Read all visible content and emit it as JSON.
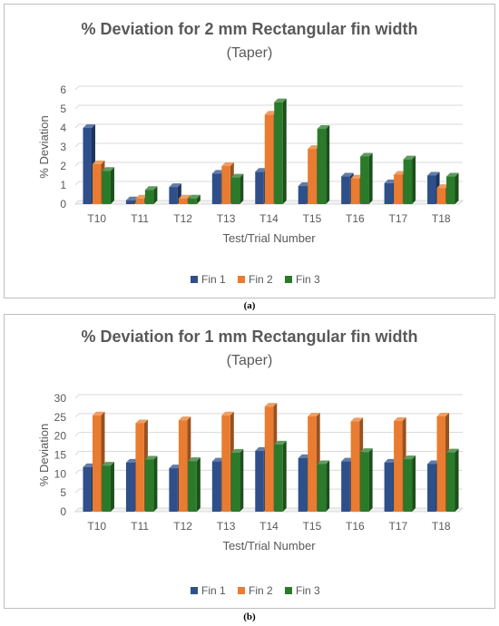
{
  "charts": [
    {
      "caption": "(a)",
      "title": "% Deviation for 2 mm Rectangular fin width",
      "subtitle": "(Taper)",
      "xlabel": "Test/Trial Number",
      "ylabel": "% Deviation"
    },
    {
      "caption": "(b)",
      "title": "% Deviation for 1 mm Rectangular fin width",
      "subtitle": "(Taper)",
      "xlabel": "Test/Trial Number",
      "ylabel": "% Deviation"
    }
  ],
  "colors": {
    "Fin 1": "#2e4f8a",
    "Fin 2": "#e97c30",
    "Fin 3": "#2a7a2a"
  },
  "chart_data": [
    {
      "type": "bar",
      "title": "% Deviation for 2 mm Rectangular fin width",
      "subtitle": "(Taper)",
      "xlabel": "Test/Trial Number",
      "ylabel": "% Deviation",
      "categories": [
        "T10",
        "T11",
        "T12",
        "T13",
        "T14",
        "T15",
        "T16",
        "T17",
        "T18"
      ],
      "ylim": [
        0,
        6
      ],
      "yticks": [
        0,
        1,
        2,
        3,
        4,
        5,
        6
      ],
      "grid": true,
      "legend": "bottom",
      "series": [
        {
          "name": "Fin 1",
          "values": [
            4.0,
            0.2,
            0.9,
            1.6,
            1.7,
            0.95,
            1.45,
            1.1,
            1.5
          ]
        },
        {
          "name": "Fin 2",
          "values": [
            2.1,
            0.3,
            0.3,
            2.0,
            4.7,
            2.9,
            1.35,
            1.55,
            0.85
          ]
        },
        {
          "name": "Fin 3",
          "values": [
            1.75,
            0.75,
            0.3,
            1.4,
            5.35,
            3.95,
            2.5,
            2.35,
            1.45
          ]
        }
      ]
    },
    {
      "type": "bar",
      "title": "% Deviation for 1 mm Rectangular fin width",
      "subtitle": "(Taper)",
      "xlabel": "Test/Trial Number",
      "ylabel": "% Deviation",
      "categories": [
        "T10",
        "T11",
        "T12",
        "T13",
        "T14",
        "T15",
        "T16",
        "T17",
        "T18"
      ],
      "ylim": [
        0,
        30
      ],
      "yticks": [
        0,
        5,
        10,
        15,
        20,
        25,
        30
      ],
      "grid": true,
      "legend": "bottom",
      "series": [
        {
          "name": "Fin 1",
          "values": [
            11.8,
            13.0,
            11.5,
            13.3,
            16.1,
            14.2,
            13.3,
            13.0,
            12.6
          ]
        },
        {
          "name": "Fin 2",
          "values": [
            25.5,
            23.4,
            24.2,
            25.5,
            27.8,
            25.2,
            23.9,
            24.0,
            25.2
          ]
        },
        {
          "name": "Fin 3",
          "values": [
            12.2,
            13.8,
            13.4,
            15.6,
            17.8,
            12.6,
            15.8,
            13.9,
            15.7
          ]
        }
      ]
    }
  ]
}
